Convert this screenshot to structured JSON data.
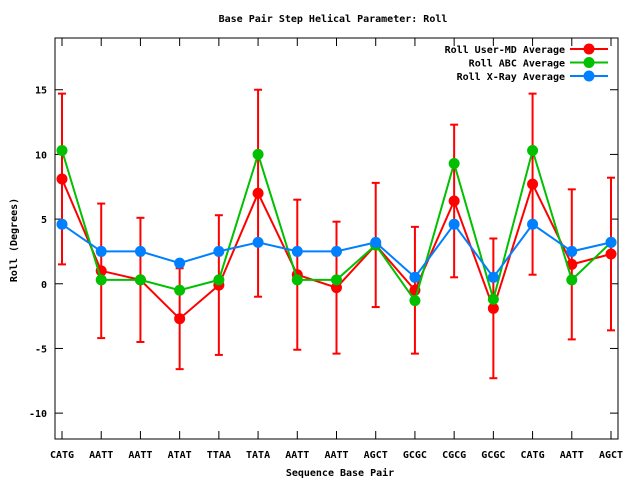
{
  "chart_data": {
    "type": "line",
    "title": "Base Pair Step Helical Parameter: Roll",
    "xlabel": "Sequence Base Pair",
    "ylabel": "Roll (Degrees)",
    "ylim": [
      -12,
      19
    ],
    "yticks": [
      -10,
      -5,
      0,
      5,
      10,
      15
    ],
    "grid": false,
    "legend_position": "top-right",
    "categories": [
      "CATG",
      "AATT",
      "AATT",
      "ATAT",
      "TTAA",
      "TATA",
      "AATT",
      "AATT",
      "AGCT",
      "GCGC",
      "CGCG",
      "GCGC",
      "CATG",
      "AATT",
      "AGCT"
    ],
    "series": [
      {
        "name": "Roll User-MD Average",
        "color": "#ff0000",
        "values": [
          8.1,
          1.0,
          0.3,
          -2.7,
          -0.1,
          7.0,
          0.7,
          -0.3,
          3.0,
          -0.5,
          6.4,
          -1.9,
          7.7,
          1.5,
          2.3
        ],
        "error": [
          6.6,
          5.2,
          4.8,
          3.9,
          5.4,
          8.0,
          5.8,
          5.1,
          4.8,
          4.9,
          5.9,
          5.4,
          7.0,
          5.8,
          5.9
        ]
      },
      {
        "name": "Roll ABC Average",
        "color": "#00c000",
        "values": [
          10.3,
          0.3,
          0.3,
          -0.5,
          0.3,
          10.0,
          0.3,
          0.3,
          3.0,
          -1.3,
          9.3,
          -1.2,
          10.3,
          0.3,
          3.2
        ]
      },
      {
        "name": "Roll X-Ray Average",
        "color": "#0080ff",
        "values": [
          4.6,
          2.5,
          2.5,
          1.6,
          2.5,
          3.2,
          2.5,
          2.5,
          3.2,
          0.5,
          4.6,
          0.5,
          4.6,
          2.5,
          3.2
        ]
      }
    ]
  }
}
